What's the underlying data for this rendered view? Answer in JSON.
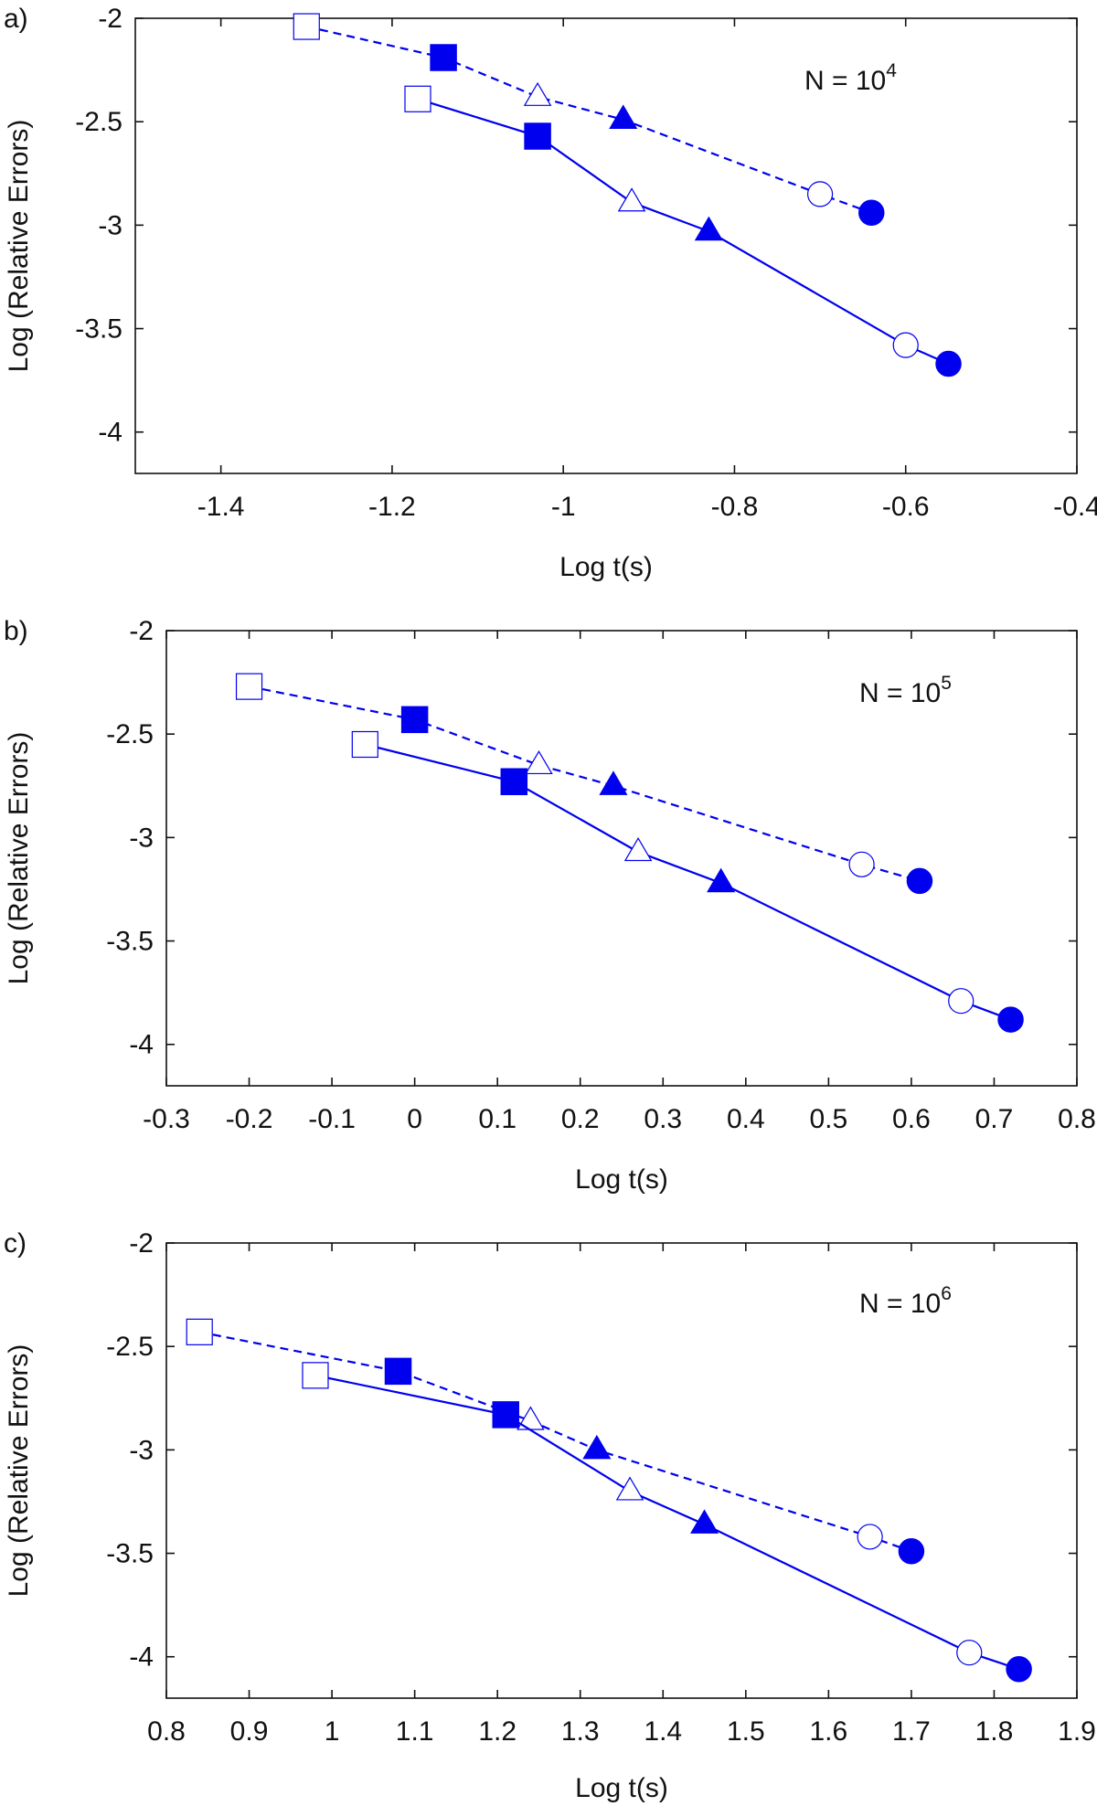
{
  "colors": {
    "series": "#0000ee",
    "axis": "#111111",
    "background": "#ffffff"
  },
  "chart_data": [
    {
      "panel_label": "a)",
      "type": "line",
      "annotation": {
        "text": "N = 10",
        "superscript": "4"
      },
      "xlabel": "Log t(s)",
      "ylabel": "Log (Relative Errors)",
      "xlim": [
        -1.5,
        -0.4
      ],
      "ylim": [
        -4.2,
        -2.0
      ],
      "xticks": [
        -1.4,
        -1.2,
        -1.0,
        -0.8,
        -0.6,
        -0.4
      ],
      "xtick_labels": [
        "-1.4",
        "-1.2",
        "-1",
        "-0.8",
        "-0.6",
        "-0.4"
      ],
      "yticks": [
        -2.0,
        -2.5,
        -3.0,
        -3.5,
        -4.0
      ],
      "ytick_labels": [
        "-2",
        "-2.5",
        "-3",
        "-3.5",
        "-4"
      ],
      "series": [
        {
          "name": "dashed",
          "style": "dashed",
          "points": [
            {
              "x": -1.3,
              "y": -2.04,
              "marker": "square",
              "filled": false
            },
            {
              "x": -1.14,
              "y": -2.19,
              "marker": "square",
              "filled": true
            },
            {
              "x": -1.03,
              "y": -2.38,
              "marker": "triangle",
              "filled": false
            },
            {
              "x": -0.93,
              "y": -2.49,
              "marker": "triangle",
              "filled": true
            },
            {
              "x": -0.7,
              "y": -2.85,
              "marker": "circle",
              "filled": false
            },
            {
              "x": -0.64,
              "y": -2.94,
              "marker": "circle",
              "filled": true
            }
          ]
        },
        {
          "name": "solid",
          "style": "solid",
          "points": [
            {
              "x": -1.17,
              "y": -2.39,
              "marker": "square",
              "filled": false
            },
            {
              "x": -1.03,
              "y": -2.57,
              "marker": "square",
              "filled": true
            },
            {
              "x": -0.92,
              "y": -2.89,
              "marker": "triangle",
              "filled": false
            },
            {
              "x": -0.83,
              "y": -3.03,
              "marker": "triangle",
              "filled": true
            },
            {
              "x": -0.6,
              "y": -3.58,
              "marker": "circle",
              "filled": false
            },
            {
              "x": -0.55,
              "y": -3.67,
              "marker": "circle",
              "filled": true
            }
          ]
        }
      ]
    },
    {
      "panel_label": "b)",
      "type": "line",
      "annotation": {
        "text": "N = 10",
        "superscript": "5"
      },
      "xlabel": "Log t(s)",
      "ylabel": "Log (Relative Errors)",
      "xlim": [
        -0.3,
        0.8
      ],
      "ylim": [
        -4.2,
        -2.0
      ],
      "xticks": [
        -0.3,
        -0.2,
        -0.1,
        0.0,
        0.1,
        0.2,
        0.3,
        0.4,
        0.5,
        0.6,
        0.7,
        0.8
      ],
      "xtick_labels": [
        "-0.3",
        "-0.2",
        "-0.1",
        "0",
        "0.1",
        "0.2",
        "0.3",
        "0.4",
        "0.5",
        "0.6",
        "0.7",
        "0.8"
      ],
      "yticks": [
        -2.0,
        -2.5,
        -3.0,
        -3.5,
        -4.0
      ],
      "ytick_labels": [
        "-2",
        "-2.5",
        "-3",
        "-3.5",
        "-4"
      ],
      "series": [
        {
          "name": "dashed",
          "style": "dashed",
          "points": [
            {
              "x": -0.2,
              "y": -2.27,
              "marker": "square",
              "filled": false
            },
            {
              "x": 0.0,
              "y": -2.43,
              "marker": "square",
              "filled": true
            },
            {
              "x": 0.15,
              "y": -2.65,
              "marker": "triangle",
              "filled": false
            },
            {
              "x": 0.24,
              "y": -2.75,
              "marker": "triangle",
              "filled": true
            },
            {
              "x": 0.54,
              "y": -3.13,
              "marker": "circle",
              "filled": false
            },
            {
              "x": 0.61,
              "y": -3.21,
              "marker": "circle",
              "filled": true
            }
          ]
        },
        {
          "name": "solid",
          "style": "solid",
          "points": [
            {
              "x": -0.06,
              "y": -2.55,
              "marker": "square",
              "filled": false
            },
            {
              "x": 0.12,
              "y": -2.73,
              "marker": "square",
              "filled": true
            },
            {
              "x": 0.27,
              "y": -3.07,
              "marker": "triangle",
              "filled": false
            },
            {
              "x": 0.37,
              "y": -3.22,
              "marker": "triangle",
              "filled": true
            },
            {
              "x": 0.66,
              "y": -3.79,
              "marker": "circle",
              "filled": false
            },
            {
              "x": 0.72,
              "y": -3.88,
              "marker": "circle",
              "filled": true
            }
          ]
        }
      ]
    },
    {
      "panel_label": "c)",
      "type": "line",
      "annotation": {
        "text": "N = 10",
        "superscript": "6"
      },
      "xlabel": "Log t(s)",
      "ylabel": "Log (Relative Errors)",
      "xlim": [
        0.8,
        1.9
      ],
      "ylim": [
        -4.2,
        -2.0
      ],
      "xticks": [
        0.8,
        0.9,
        1.0,
        1.1,
        1.2,
        1.3,
        1.4,
        1.5,
        1.6,
        1.7,
        1.8,
        1.9
      ],
      "xtick_labels": [
        "0.8",
        "0.9",
        "1",
        "1.1",
        "1.2",
        "1.3",
        "1.4",
        "1.5",
        "1.6",
        "1.7",
        "1.8",
        "1.9"
      ],
      "yticks": [
        -2.0,
        -2.5,
        -3.0,
        -3.5,
        -4.0
      ],
      "ytick_labels": [
        "-2",
        "-2.5",
        "-3",
        "-3.5",
        "-4"
      ],
      "series": [
        {
          "name": "dashed",
          "style": "dashed",
          "points": [
            {
              "x": 0.84,
              "y": -2.43,
              "marker": "square",
              "filled": false
            },
            {
              "x": 1.08,
              "y": -2.62,
              "marker": "square",
              "filled": true
            },
            {
              "x": 1.24,
              "y": -2.86,
              "marker": "triangle",
              "filled": false
            },
            {
              "x": 1.32,
              "y": -3.0,
              "marker": "triangle",
              "filled": true
            },
            {
              "x": 1.65,
              "y": -3.42,
              "marker": "circle",
              "filled": false
            },
            {
              "x": 1.7,
              "y": -3.49,
              "marker": "circle",
              "filled": true
            }
          ]
        },
        {
          "name": "solid",
          "style": "solid",
          "points": [
            {
              "x": 0.98,
              "y": -2.64,
              "marker": "square",
              "filled": false
            },
            {
              "x": 1.21,
              "y": -2.83,
              "marker": "square",
              "filled": true
            },
            {
              "x": 1.36,
              "y": -3.2,
              "marker": "triangle",
              "filled": false
            },
            {
              "x": 1.45,
              "y": -3.36,
              "marker": "triangle",
              "filled": true
            },
            {
              "x": 1.77,
              "y": -3.98,
              "marker": "circle",
              "filled": false
            },
            {
              "x": 1.83,
              "y": -4.06,
              "marker": "circle",
              "filled": true
            }
          ]
        }
      ]
    }
  ]
}
